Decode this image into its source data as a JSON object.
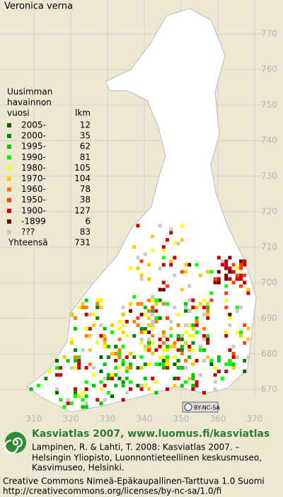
{
  "title": "Veronica verna",
  "legend": {
    "heading": [
      "Uusimman",
      "havainnon",
      "vuosi"
    ],
    "count_heading": "lkm",
    "items": [
      {
        "label": "2005-",
        "count": 12,
        "color": "#006400"
      },
      {
        "label": "2000-",
        "count": 35,
        "color": "#008c00"
      },
      {
        "label": "1995-",
        "count": 62,
        "color": "#00c800"
      },
      {
        "label": "1990-",
        "count": 81,
        "color": "#00ff00"
      },
      {
        "label": "1980-",
        "count": 105,
        "color": "#ffff00"
      },
      {
        "label": "1970-",
        "count": 104,
        "color": "#ffc800"
      },
      {
        "label": "1960-",
        "count": 78,
        "color": "#ff8000"
      },
      {
        "label": "1950-",
        "count": 38,
        "color": "#ff4000"
      },
      {
        "label": "1900-",
        "count": 127,
        "color": "#c80000"
      },
      {
        "label": "-1899",
        "count": 6,
        "color": "#780000"
      },
      {
        "label": "???",
        "count": 83,
        "color": "#c8c8c8"
      }
    ],
    "total_label": "Yhteensä",
    "total": 731
  },
  "grid": {
    "x_labels": [
      310,
      320,
      330,
      340,
      350,
      360,
      370
    ],
    "y_labels": [
      770,
      760,
      750,
      740,
      730,
      720,
      710,
      700,
      690,
      680,
      670
    ]
  },
  "cc_badge": "BY-NC-SA",
  "footer": {
    "site": "Kasviatlas 2007, www.luomus.fi/kasviatlas",
    "citation": [
      "Lampinen, R. & Lahti, T. 2008: Kasviatlas 2007. –",
      "Helsingin Yliopisto, Luonnontieteellinen keskusmuseo,",
      "Kasvimuseo, Helsinki."
    ],
    "license": [
      "Creative Commons Nimeä-Epäkaupallinen-Tarttuva 1.0 Suomi",
      "http://creativecommons.org/licenses/by-nc-sa/1.0/fi"
    ]
  }
}
